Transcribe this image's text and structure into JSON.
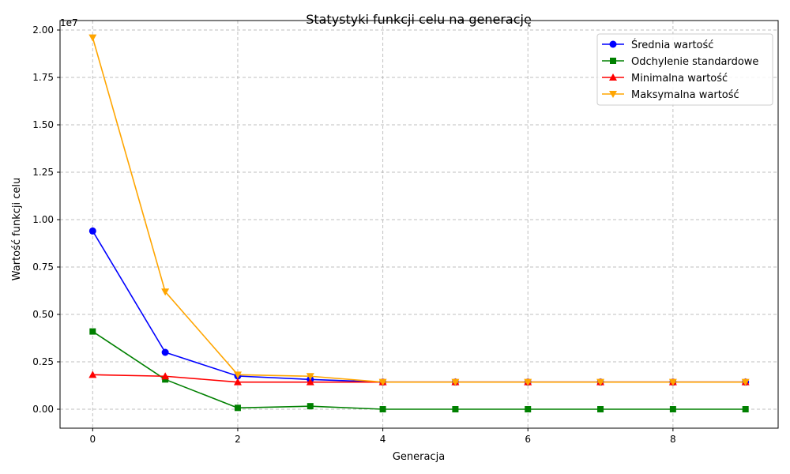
{
  "chart_data": {
    "type": "line",
    "title": "Statystyki funkcji celu na generację",
    "xlabel": "Generacja",
    "ylabel": "Wartość funkcji celu",
    "y_multiplier_label": "1e7",
    "xlim": [
      -0.45,
      9.45
    ],
    "ylim": [
      -1000000,
      20500000
    ],
    "x_ticks": [
      0,
      2,
      4,
      6,
      8
    ],
    "x_tick_labels": [
      "0",
      "2",
      "4",
      "6",
      "8"
    ],
    "y_ticks": [
      0,
      2500000,
      5000000,
      7500000,
      10000000,
      12500000,
      15000000,
      17500000,
      20000000
    ],
    "y_tick_labels": [
      "0.00",
      "0.25",
      "0.50",
      "0.75",
      "1.00",
      "1.25",
      "1.50",
      "1.75",
      "2.00"
    ],
    "grid": true,
    "legend_position": "top-right",
    "x": [
      0,
      1,
      2,
      3,
      4,
      5,
      6,
      7,
      8,
      9
    ],
    "series": [
      {
        "name": "Średnia wartość",
        "color": "#0000ff",
        "marker": "circle",
        "values": [
          9400000,
          3000000,
          1750000,
          1570000,
          1430000,
          1430000,
          1430000,
          1430000,
          1430000,
          1430000
        ]
      },
      {
        "name": "Odchylenie standardowe",
        "color": "#008000",
        "marker": "square",
        "values": [
          4100000,
          1570000,
          70000,
          160000,
          0,
          0,
          0,
          0,
          0,
          0
        ]
      },
      {
        "name": "Minimalna wartość",
        "color": "#ff0000",
        "marker": "triangle-up",
        "values": [
          1820000,
          1740000,
          1430000,
          1430000,
          1430000,
          1430000,
          1430000,
          1430000,
          1430000,
          1430000
        ]
      },
      {
        "name": "Maksymalna wartość",
        "color": "#ffa500",
        "marker": "triangle-down",
        "values": [
          19600000,
          6200000,
          1820000,
          1740000,
          1430000,
          1430000,
          1430000,
          1430000,
          1430000,
          1430000
        ]
      }
    ]
  }
}
